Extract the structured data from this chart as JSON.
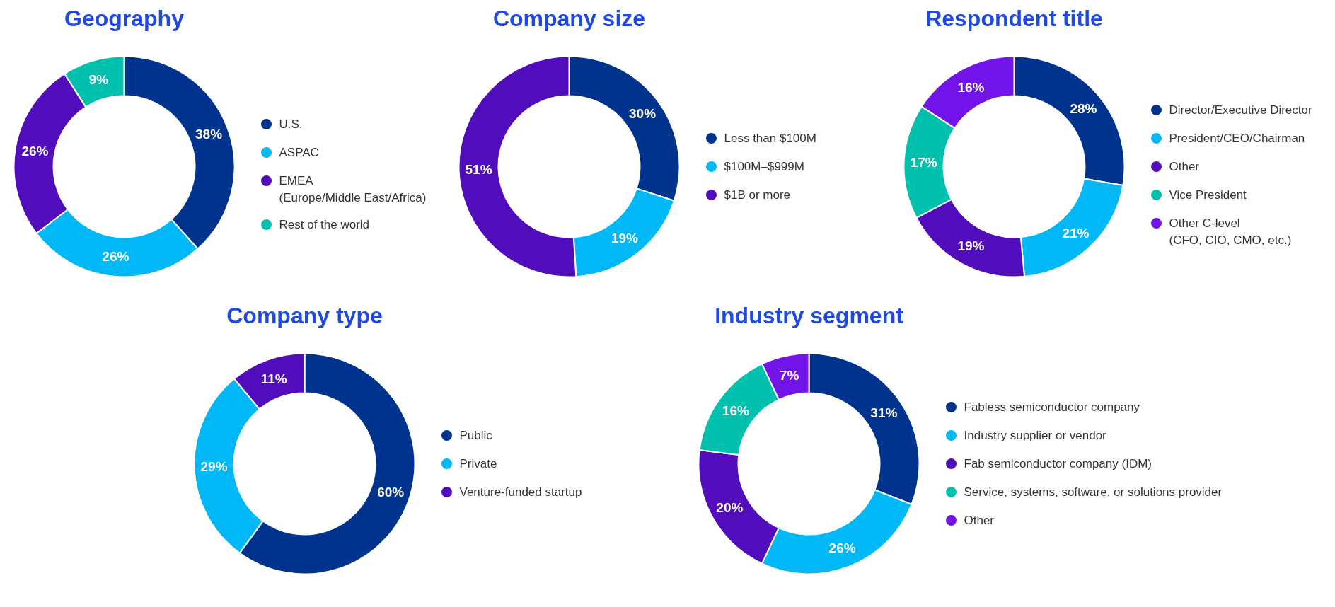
{
  "chart_data": [
    {
      "type": "donut",
      "title": "Geography",
      "categories": [
        "U.S.",
        "ASPAC",
        "EMEA\n(Europe/Middle East/Africa)",
        "Rest of the world"
      ],
      "values": [
        38,
        26,
        26,
        9
      ],
      "colors": [
        "#00338d",
        "#00b8f5",
        "#510dbc",
        "#00c0ae"
      ],
      "value_labels": [
        "38%",
        "26%",
        "26%",
        "9%"
      ],
      "legend": "right"
    },
    {
      "type": "donut",
      "title": "Company size",
      "categories": [
        "Less than $100M",
        "$100M–$999M",
        "$1B or more"
      ],
      "values": [
        30,
        19,
        51
      ],
      "colors": [
        "#00338d",
        "#00b8f5",
        "#510dbc"
      ],
      "value_labels": [
        "30%",
        "19%",
        "51%"
      ],
      "legend": "right"
    },
    {
      "type": "donut",
      "title": "Respondent title",
      "categories": [
        "Director/Executive Director",
        "President/CEO/Chairman",
        "Other",
        "Vice President",
        "Other C-level\n(CFO, CIO, CMO, etc.)"
      ],
      "values": [
        28,
        21,
        19,
        17,
        16
      ],
      "colors": [
        "#00338d",
        "#00b8f5",
        "#510dbc",
        "#00c0ae",
        "#7213ea"
      ],
      "value_labels": [
        "28%",
        "21%",
        "19%",
        "17%",
        "16%"
      ],
      "legend": "right"
    },
    {
      "type": "donut",
      "title": "Company type",
      "categories": [
        "Public",
        "Private",
        "Venture-funded startup"
      ],
      "values": [
        60,
        29,
        11
      ],
      "colors": [
        "#00338d",
        "#00b8f5",
        "#510dbc"
      ],
      "value_labels": [
        "60%",
        "29%",
        "11%"
      ],
      "legend": "right"
    },
    {
      "type": "donut",
      "title": "Industry segment",
      "categories": [
        "Fabless semiconductor company",
        "Industry supplier or vendor",
        "Fab semiconductor company (IDM)",
        "Service, systems, software, or solutions provider",
        "Other"
      ],
      "values": [
        31,
        26,
        20,
        16,
        7
      ],
      "colors": [
        "#00338d",
        "#00b8f5",
        "#510dbc",
        "#00c0ae",
        "#7213ea"
      ],
      "value_labels": [
        "31%",
        "26%",
        "20%",
        "16%",
        "7%"
      ],
      "legend": "right"
    }
  ]
}
